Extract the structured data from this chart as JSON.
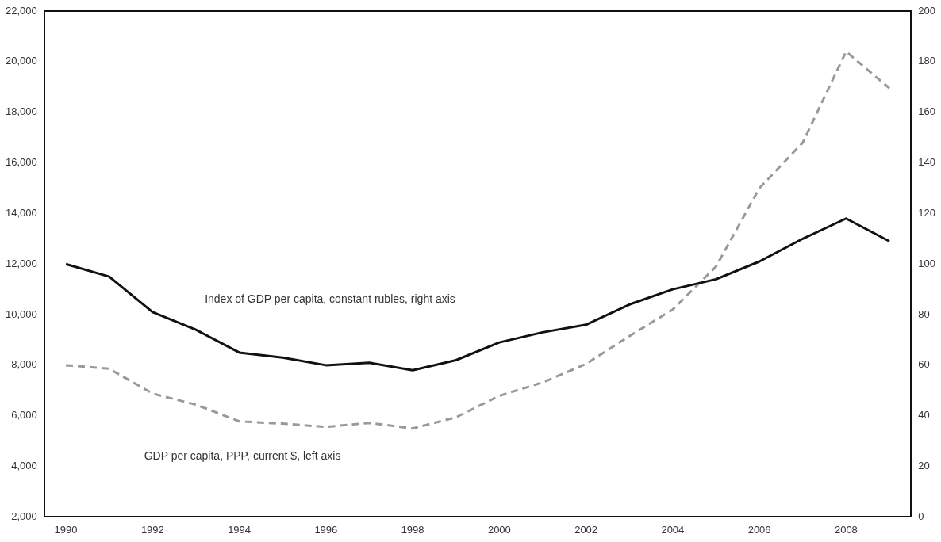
{
  "chart_data": {
    "type": "line",
    "categories": [
      "1990",
      null,
      "1992",
      null,
      "1994",
      null,
      "1996",
      null,
      "1998",
      null,
      "2000",
      null,
      "2002",
      null,
      "2004",
      null,
      "2006",
      null,
      "2008",
      null
    ],
    "series": [
      {
        "color": "#111111",
        "line_style": "solid",
        "axis": "y2",
        "values": [
          100,
          95,
          81,
          74,
          65,
          63,
          60,
          61,
          58,
          62,
          69,
          73,
          76,
          84,
          90,
          94,
          101,
          110,
          118,
          109
        ]
      },
      {
        "color": "#999999",
        "line_style": "dashed",
        "values": [
          8000,
          7860,
          6880,
          6440,
          5780,
          5690,
          5560,
          5720,
          5500,
          5940,
          6790,
          7320,
          8050,
          9150,
          10200,
          11900,
          15000,
          16800,
          20400,
          18950
        ]
      }
    ],
    "ylim": [
      2000,
      22000
    ],
    "yticks": [
      {
        "value": 2000,
        "label": "2,000"
      },
      {
        "value": 4000,
        "label": "4,000"
      },
      {
        "value": 6000,
        "label": "6,000"
      },
      {
        "value": 8000,
        "label": "8,000"
      },
      {
        "value": 10000,
        "label": "10,000"
      },
      {
        "value": 12000,
        "label": "12,000"
      },
      {
        "value": 14000,
        "label": "14,000"
      },
      {
        "value": 16000,
        "label": "16,000"
      },
      {
        "value": 18000,
        "label": "18,000"
      },
      {
        "value": 20000,
        "label": "20,000"
      },
      {
        "value": 22000,
        "label": "22,000"
      }
    ],
    "y2lim": [
      0,
      200
    ],
    "y2ticks": [
      0,
      20,
      40,
      60,
      80,
      100,
      120,
      140,
      160,
      180,
      200
    ],
    "grid": false,
    "legend": false,
    "marker": "none",
    "annotations": [
      "Index of GDP per capita, constant rubles, right axis",
      "GDP per capita, PPP, current $, left axis"
    ]
  }
}
